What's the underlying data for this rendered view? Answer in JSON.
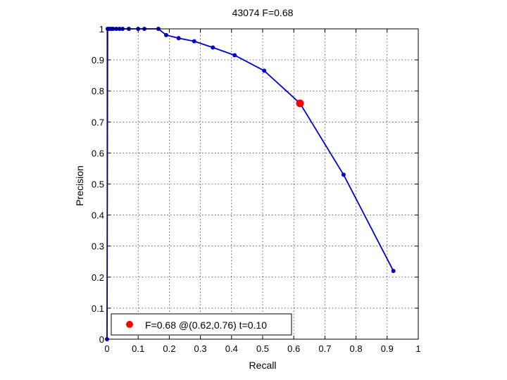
{
  "chart_data": {
    "type": "line",
    "title": "43074 F=0.68",
    "xlabel": "Recall",
    "ylabel": "Precision",
    "xlim": [
      0,
      1
    ],
    "ylim": [
      0,
      1
    ],
    "xticks": [
      "0",
      "0.1",
      "0.2",
      "0.3",
      "0.4",
      "0.5",
      "0.6",
      "0.7",
      "0.8",
      "0.9",
      "1"
    ],
    "yticks": [
      "0",
      "0.1",
      "0.2",
      "0.3",
      "0.4",
      "0.5",
      "0.6",
      "0.7",
      "0.8",
      "0.9",
      "1"
    ],
    "grid": true,
    "legend_position": "bottom-left",
    "legend_label": "F=0.68 @(0.62,0.76) t=0.10",
    "series": [
      {
        "color": "#0000cc",
        "x": [
          0,
          0.002,
          0.005,
          0.01,
          0.015,
          0.02,
          0.03,
          0.04,
          0.05,
          0.07,
          0.1,
          0.12,
          0.165,
          0.19,
          0.23,
          0.28,
          0.34,
          0.41,
          0.505,
          0.62,
          0.76,
          0.92
        ],
        "y": [
          0,
          1,
          1,
          1,
          1,
          1,
          1,
          1,
          1,
          1,
          1,
          1,
          1,
          0.98,
          0.97,
          0.96,
          0.94,
          0.915,
          0.865,
          0.76,
          0.53,
          0.22
        ]
      }
    ],
    "highlight": {
      "x": 0.62,
      "y": 0.76,
      "color": "#ff0000"
    }
  }
}
